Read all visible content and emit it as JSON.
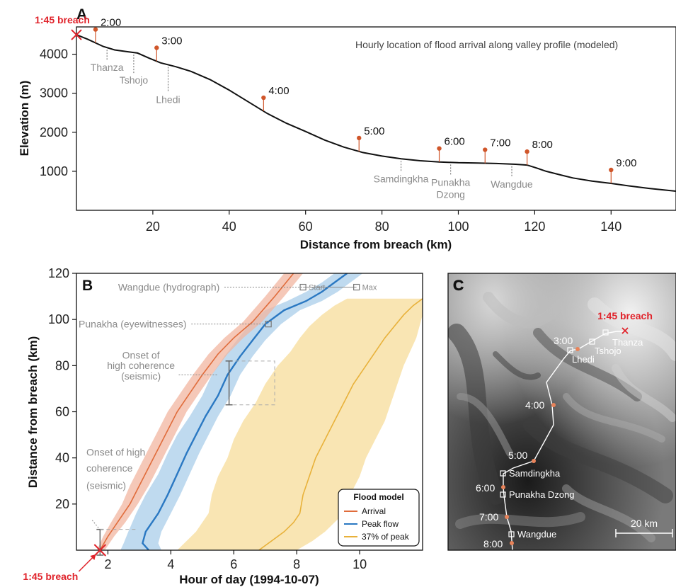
{
  "chart_data": [
    {
      "panel": "A",
      "type": "line",
      "title": "Hourly location of flood arrival along valley profile (modeled)",
      "xlabel": "Distance from breach (km)",
      "ylabel": "Elevation (m)",
      "xlim": [
        0,
        157
      ],
      "ylim": [
        0,
        4700
      ],
      "xticks": [
        20,
        40,
        60,
        80,
        100,
        120,
        140
      ],
      "yticks": [
        1000,
        2000,
        3000,
        4000
      ],
      "profile": {
        "x": [
          0,
          3,
          7,
          10,
          13,
          16,
          19,
          22,
          26,
          30,
          35,
          40,
          45,
          50,
          55,
          60,
          65,
          70,
          75,
          80,
          85,
          90,
          95,
          100,
          105,
          110,
          115,
          118,
          120,
          123,
          127,
          130,
          135,
          140,
          145,
          150,
          157
        ],
        "y": [
          4500,
          4380,
          4200,
          4110,
          4070,
          4030,
          3900,
          3780,
          3680,
          3560,
          3350,
          3080,
          2780,
          2480,
          2230,
          2020,
          1800,
          1620,
          1480,
          1390,
          1320,
          1270,
          1240,
          1220,
          1210,
          1200,
          1180,
          1160,
          1100,
          1000,
          900,
          830,
          750,
          690,
          620,
          560,
          490
        ]
      },
      "breach": {
        "label": "1:45 breach",
        "x": 0,
        "y": 4500
      },
      "hour_markers": [
        {
          "label": "2:00",
          "x": 5,
          "y": 4400
        },
        {
          "label": "3:00",
          "x": 21,
          "y": 3820
        },
        {
          "label": "4:00",
          "x": 49,
          "y": 2520
        },
        {
          "label": "5:00",
          "x": 74,
          "y": 1500
        },
        {
          "label": "6:00",
          "x": 95,
          "y": 1240
        },
        {
          "label": "7:00",
          "x": 107,
          "y": 1205
        },
        {
          "label": "8:00",
          "x": 118,
          "y": 1160
        },
        {
          "label": "9:00",
          "x": 140,
          "y": 690
        }
      ],
      "places": [
        {
          "label": "Thanza",
          "x": 8
        },
        {
          "label": "Tshojo",
          "x": 15
        },
        {
          "label": "Lhedi",
          "x": 24
        },
        {
          "label": "Samdingkha",
          "x": 85
        },
        {
          "label": "Punakha",
          "label2": "Dzong",
          "x": 98
        },
        {
          "label": "Wangdue",
          "x": 114
        }
      ]
    },
    {
      "panel": "B",
      "type": "line",
      "xlabel": "Hour of day (1994-10-07)",
      "ylabel": "Distance from breach (km)",
      "xlim": [
        1.0,
        12.0
      ],
      "ylim": [
        0,
        120
      ],
      "xticks": [
        2,
        4,
        6,
        8,
        10
      ],
      "yticks": [
        20,
        40,
        60,
        80,
        100,
        120
      ],
      "legend": {
        "title": "Flood model",
        "position": "bottom-right",
        "entries": [
          {
            "name": "Arrival",
            "color": "#e06c3b"
          },
          {
            "name": "Peak flow",
            "color": "#2a78c2"
          },
          {
            "name": "37% of peak",
            "color": "#e8b13a"
          }
        ]
      },
      "series": [
        {
          "name": "Arrival",
          "color": "#e06c3b",
          "band_color": "#f2b6a0",
          "x": [
            1.75,
            2.0,
            2.3,
            2.7,
            3.0,
            3.3,
            3.6,
            3.9,
            4.2,
            4.6,
            5.0,
            5.5,
            6.0,
            6.6,
            7.3,
            7.9
          ],
          "y": [
            0,
            6,
            12,
            20,
            28,
            36,
            44,
            52,
            60,
            68,
            76,
            85,
            92,
            99,
            110,
            120
          ],
          "lower": [
            1.65,
            1.85,
            2.1,
            2.45,
            2.7,
            3.0,
            3.3,
            3.6,
            3.9,
            4.3,
            4.7,
            5.2,
            5.7,
            6.3,
            7.0,
            7.6
          ],
          "upper": [
            1.9,
            2.2,
            2.55,
            2.95,
            3.3,
            3.6,
            3.9,
            4.2,
            4.5,
            4.9,
            5.3,
            5.8,
            6.3,
            6.9,
            7.6,
            8.2
          ]
        },
        {
          "name": "Peak flow",
          "color": "#2a78c2",
          "band_color": "#a9cdea",
          "x": [
            3.3,
            3.1,
            3.2,
            3.6,
            3.9,
            4.2,
            4.5,
            4.8,
            5.1,
            5.5,
            5.8,
            6.2,
            6.6,
            7.0,
            7.6,
            8.3,
            8.8,
            9.2,
            9.6
          ],
          "y": [
            0,
            3,
            8,
            16,
            24,
            33,
            42,
            50,
            58,
            67,
            76,
            84,
            91,
            98,
            104,
            108,
            112,
            116,
            120
          ],
          "lower": [
            2.4,
            2.5,
            2.65,
            2.9,
            3.2,
            3.6,
            3.9,
            4.2,
            4.6,
            5.0,
            5.3,
            5.7,
            6.1,
            6.5,
            7.0,
            7.7,
            8.3,
            8.8,
            9.2
          ],
          "upper": [
            3.7,
            3.6,
            3.7,
            4.0,
            4.3,
            4.6,
            4.9,
            5.2,
            5.5,
            5.9,
            6.2,
            6.6,
            7.0,
            7.5,
            8.1,
            8.8,
            9.3,
            9.7,
            10.1
          ]
        },
        {
          "name": "37% of peak",
          "color": "#e8b13a",
          "band_color": "#f8e1a6",
          "x": [
            6.8,
            7.2,
            7.6,
            7.9,
            8.1,
            8.2,
            8.4,
            8.6,
            8.9,
            9.2,
            9.5,
            9.8,
            10.2,
            10.5,
            10.8,
            11.1,
            11.4,
            11.7,
            12.0
          ],
          "y": [
            0,
            4,
            8,
            12,
            16,
            24,
            32,
            40,
            48,
            56,
            64,
            72,
            80,
            86,
            92,
            97,
            102,
            106,
            109
          ],
          "lower": [
            4.2,
            4.5,
            4.8,
            5.0,
            5.2,
            5.3,
            5.5,
            5.8,
            6.0,
            6.3,
            6.7,
            7.0,
            7.4,
            7.8,
            8.1,
            8.4,
            8.8,
            9.2,
            9.6
          ],
          "upper": [
            8.0,
            8.5,
            8.9,
            9.2,
            9.5,
            9.7,
            10.0,
            10.2,
            10.5,
            10.8,
            11.0,
            11.2,
            11.4,
            11.6,
            11.8,
            11.9,
            12.0,
            12.0,
            12.0
          ]
        }
      ],
      "observations": [
        {
          "label": "Wangdue (hydrograph)",
          "x": 8.2,
          "y": 114
        },
        {
          "label": "Start",
          "x": 8.2,
          "y": 114
        },
        {
          "label": "Max",
          "x": 9.9,
          "y": 114
        },
        {
          "label": "Punakha (eyewitnesses)",
          "x": 7.1,
          "y": 98
        },
        {
          "label": "Onset of",
          "label2": "high coherence",
          "label3": "(seismic)",
          "x": 5.85,
          "y_low": 63,
          "y_high": 82,
          "x_box_end": 7.3
        },
        {
          "label": "Onset of high",
          "label2": "coherence",
          "label3": "(seismic)",
          "x": 1.75,
          "y_low": 0,
          "y_high": 9
        }
      ],
      "breach": {
        "label": "1:45 breach",
        "x": 1.75,
        "y": 0
      }
    },
    {
      "panel": "C",
      "type": "map",
      "scale_bar": "20 km",
      "breach_label": "1:45 breach",
      "hour_labels": [
        "3:00",
        "4:00",
        "5:00",
        "6:00",
        "7:00",
        "8:00"
      ],
      "places": [
        "Thanza",
        "Tshojo",
        "Lhedi",
        "Samdingkha",
        "Punakha Dzong",
        "Wangdue"
      ]
    }
  ]
}
